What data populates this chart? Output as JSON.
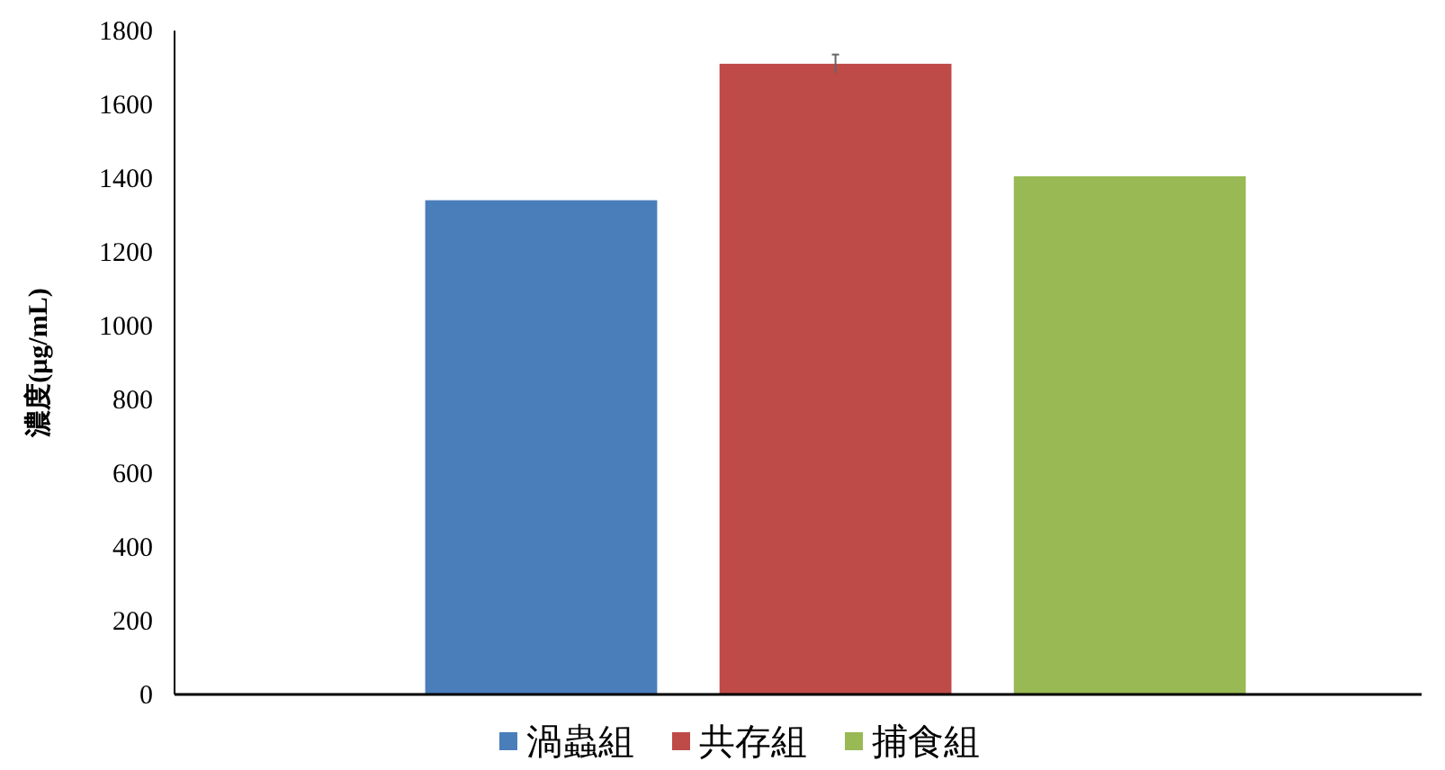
{
  "chart_data": {
    "type": "bar",
    "ylabel": "濃度(μg/mL)",
    "categories": [
      null
    ],
    "series": [
      {
        "name": "渦蟲組",
        "color": "#4a7ebb",
        "values": [
          1340
        ]
      },
      {
        "name": "共存組",
        "color": "#be4b48",
        "values": [
          1710
        ],
        "errors": [
          25
        ]
      },
      {
        "name": "捕食組",
        "color": "#98b954",
        "values": [
          1405
        ]
      }
    ],
    "ylim": [
      0,
      1800
    ],
    "yticks": [
      0,
      200,
      400,
      600,
      800,
      1000,
      1200,
      1400,
      1600,
      1800
    ],
    "legend": "bottom"
  }
}
